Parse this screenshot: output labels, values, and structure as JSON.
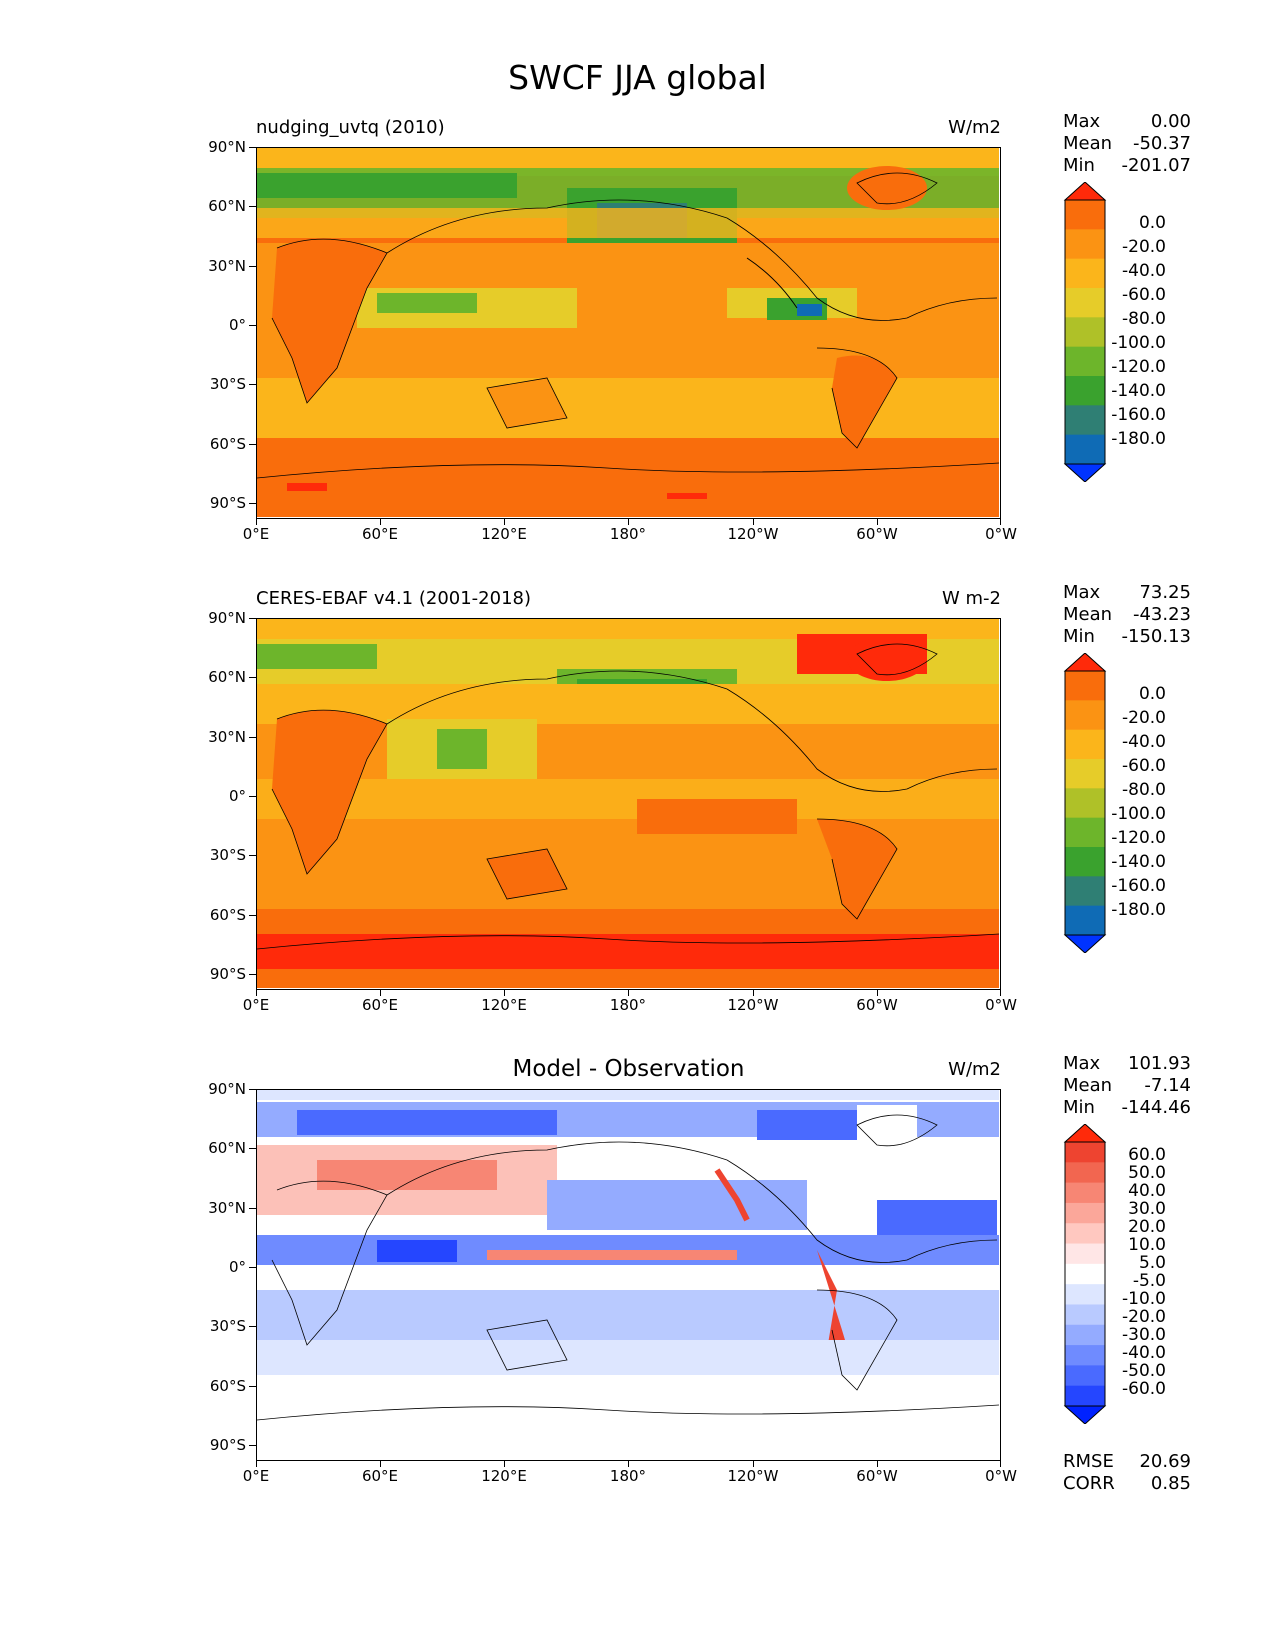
{
  "title": "SWCF JJA global",
  "axes": {
    "yticks": [
      "90°N",
      "60°N",
      "30°N",
      "0°",
      "30°S",
      "60°S",
      "90°S"
    ],
    "xticks": [
      "0°E",
      "60°E",
      "120°E",
      "180°",
      "120°W",
      "60°W",
      "0°W"
    ]
  },
  "colors": {
    "abs_levels": [
      "#0033ff",
      "#0f6bb5",
      "#2f7f74",
      "#3aa22e",
      "#6db52b",
      "#afc128",
      "#e6cc29",
      "#fbb51b",
      "#fb9313",
      "#f96d0c",
      "#ff2a0a"
    ],
    "diff_levels": [
      "#0022ff",
      "#2546ff",
      "#4a6aff",
      "#6f8bff",
      "#94abff",
      "#b9caff",
      "#dde6ff",
      "#ffffff",
      "#ffe6e6",
      "#ffc8c0",
      "#fba79a",
      "#f78674",
      "#f26650",
      "#ee4430",
      "#ff2a0a"
    ],
    "coastline": "#000000"
  },
  "panels": [
    {
      "left_title": "nudging_uvtq (2010)",
      "center_title": "",
      "units": "W/m2",
      "stats": {
        "max_label": "Max",
        "max": "0.00",
        "mean_label": "Mean",
        "mean": "-50.37",
        "min_label": "Min",
        "min": "-201.07"
      },
      "colorbar_labels": [
        "0.0",
        "-20.0",
        "-40.0",
        "-60.0",
        "-80.0",
        "-100.0",
        "-120.0",
        "-140.0",
        "-160.0",
        "-180.0"
      ],
      "palette": "abs"
    },
    {
      "left_title": "CERES-EBAF v4.1 (2001-2018)",
      "center_title": "",
      "units": "W m-2",
      "stats": {
        "max_label": "Max",
        "max": "73.25",
        "mean_label": "Mean",
        "mean": "-43.23",
        "min_label": "Min",
        "min": "-150.13"
      },
      "colorbar_labels": [
        "0.0",
        "-20.0",
        "-40.0",
        "-60.0",
        "-80.0",
        "-100.0",
        "-120.0",
        "-140.0",
        "-160.0",
        "-180.0"
      ],
      "palette": "abs"
    },
    {
      "left_title": "",
      "center_title": "Model - Observation",
      "units": "W/m2",
      "stats": {
        "max_label": "Max",
        "max": "101.93",
        "mean_label": "Mean",
        "mean": "-7.14",
        "min_label": "Min",
        "min": "-144.46"
      },
      "colorbar_labels": [
        "60.0",
        "50.0",
        "40.0",
        "30.0",
        "20.0",
        "10.0",
        "5.0",
        "-5.0",
        "-10.0",
        "-20.0",
        "-30.0",
        "-40.0",
        "-50.0",
        "-60.0"
      ],
      "palette": "diff",
      "rmse_label": "RMSE",
      "rmse": "20.69",
      "corr_label": "CORR",
      "corr": "0.85"
    }
  ]
}
